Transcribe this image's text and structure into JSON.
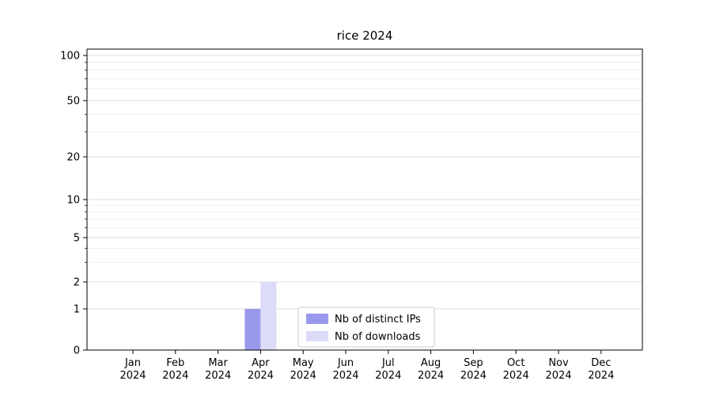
{
  "chart_data": {
    "type": "bar",
    "title": "rice 2024",
    "year_label": "2024",
    "categories": [
      "Jan",
      "Feb",
      "Mar",
      "Apr",
      "May",
      "Jun",
      "Jul",
      "Aug",
      "Sep",
      "Oct",
      "Nov",
      "Dec"
    ],
    "series": [
      {
        "name": "Nb of distinct IPs",
        "color": "#9999ec",
        "values": [
          0,
          0,
          0,
          1,
          0,
          0,
          0,
          0,
          0,
          0,
          0,
          0
        ]
      },
      {
        "name": "Nb of downloads",
        "color": "#dcdcf8",
        "values": [
          0,
          0,
          0,
          2,
          0,
          0,
          0,
          0,
          0,
          0,
          0,
          0
        ]
      }
    ],
    "yscale": "symlog",
    "yticks": [
      0,
      1,
      2,
      5,
      10,
      20,
      50,
      100
    ],
    "yticks_minor": [
      3,
      4,
      6,
      7,
      8,
      9,
      30,
      40,
      60,
      70,
      80,
      90
    ],
    "ylim": [
      0,
      110
    ],
    "grid": "horizontal",
    "legend_position": "lower center",
    "colors": {
      "axis": "#000000",
      "grid_major": "#dcdcdc",
      "grid_minor": "#efefef",
      "legend_border": "#cccccc",
      "legend_bg": "#ffffff"
    }
  }
}
